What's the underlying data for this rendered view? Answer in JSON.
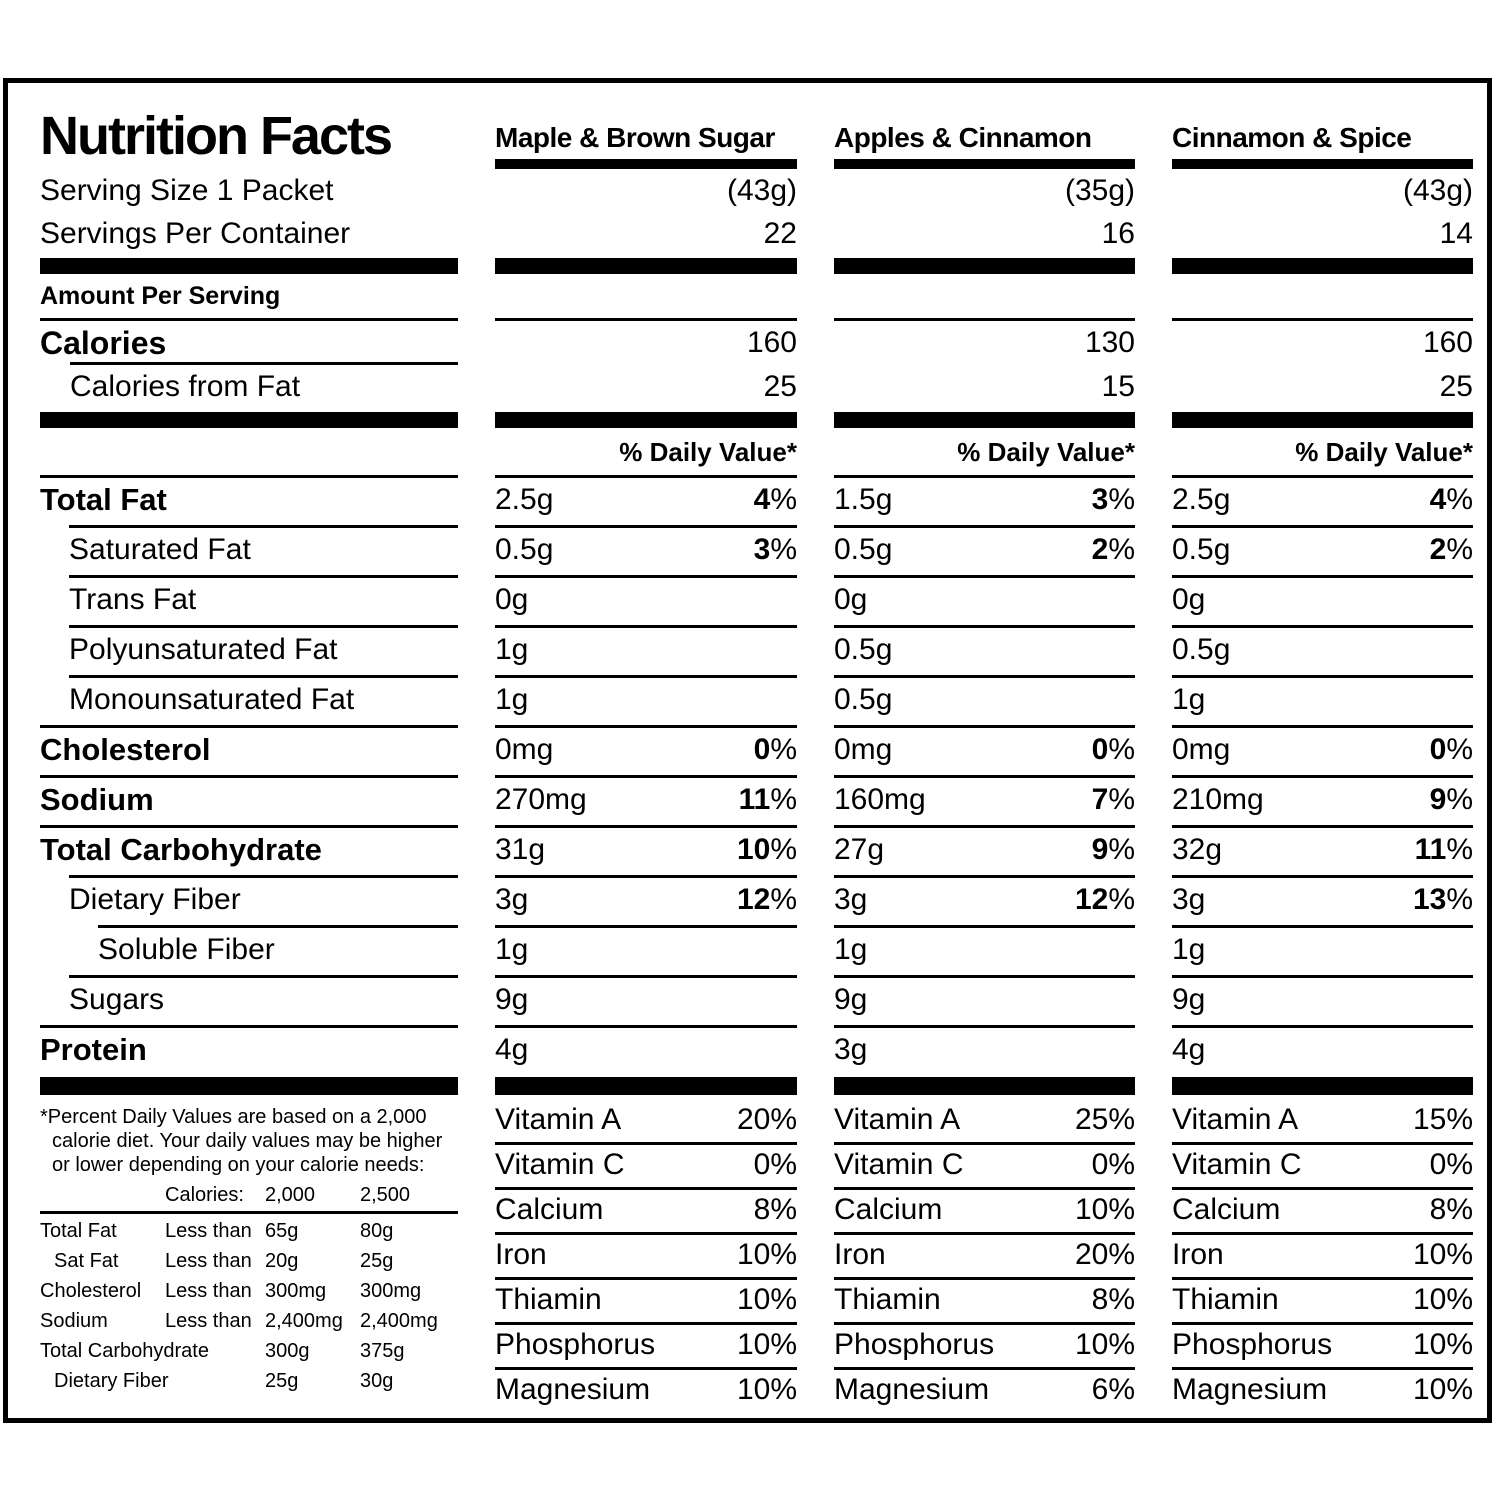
{
  "title": "Nutrition Facts",
  "serving": {
    "size_label": "Serving Size 1 Packet",
    "per_container_label": "Servings Per Container"
  },
  "amount_per_serving_label": "Amount Per Serving",
  "calories_label": "Calories",
  "calories_from_fat_label": "Calories from Fat",
  "daily_value_header": "% Daily Value*",
  "columns": [
    {
      "name": "Maple & Brown Sugar",
      "serving_weight": "(43g)",
      "servings_per_container": "22",
      "calories": "160",
      "calories_from_fat": "25"
    },
    {
      "name": "Apples & Cinnamon",
      "serving_weight": "(35g)",
      "servings_per_container": "16",
      "calories": "130",
      "calories_from_fat": "15"
    },
    {
      "name": "Cinnamon & Spice",
      "serving_weight": "(43g)",
      "servings_per_container": "14",
      "calories": "160",
      "calories_from_fat": "25"
    }
  ],
  "nutrients": [
    {
      "label": "Total Fat",
      "bold": true,
      "indent": 0,
      "values": [
        {
          "amount": "2.5g",
          "dv": "4%"
        },
        {
          "amount": "1.5g",
          "dv": "3%"
        },
        {
          "amount": "2.5g",
          "dv": "4%"
        }
      ]
    },
    {
      "label": "Saturated Fat",
      "bold": false,
      "indent": 1,
      "values": [
        {
          "amount": "0.5g",
          "dv": "3%"
        },
        {
          "amount": "0.5g",
          "dv": "2%"
        },
        {
          "amount": "0.5g",
          "dv": "2%"
        }
      ]
    },
    {
      "label": "Trans Fat",
      "bold": false,
      "indent": 1,
      "values": [
        {
          "amount": "0g"
        },
        {
          "amount": "0g"
        },
        {
          "amount": "0g"
        }
      ]
    },
    {
      "label": "Polyunsaturated Fat",
      "bold": false,
      "indent": 1,
      "values": [
        {
          "amount": "1g"
        },
        {
          "amount": "0.5g"
        },
        {
          "amount": "0.5g"
        }
      ]
    },
    {
      "label": "Monounsaturated Fat",
      "bold": false,
      "indent": 1,
      "values": [
        {
          "amount": "1g"
        },
        {
          "amount": "0.5g"
        },
        {
          "amount": "1g"
        }
      ]
    },
    {
      "label": "Cholesterol",
      "bold": true,
      "indent": 0,
      "values": [
        {
          "amount": "0mg",
          "dv": "0%"
        },
        {
          "amount": "0mg",
          "dv": "0%"
        },
        {
          "amount": "0mg",
          "dv": "0%"
        }
      ]
    },
    {
      "label": "Sodium",
      "bold": true,
      "indent": 0,
      "values": [
        {
          "amount": "270mg",
          "dv": "11%"
        },
        {
          "amount": "160mg",
          "dv": "7%"
        },
        {
          "amount": "210mg",
          "dv": "9%"
        }
      ]
    },
    {
      "label": "Total Carbohydrate",
      "bold": true,
      "indent": 0,
      "values": [
        {
          "amount": "31g",
          "dv": "10%"
        },
        {
          "amount": "27g",
          "dv": "9%"
        },
        {
          "amount": "32g",
          "dv": "11%"
        }
      ]
    },
    {
      "label": "Dietary Fiber",
      "bold": false,
      "indent": 1,
      "values": [
        {
          "amount": "3g",
          "dv": "12%"
        },
        {
          "amount": "3g",
          "dv": "12%"
        },
        {
          "amount": "3g",
          "dv": "13%"
        }
      ]
    },
    {
      "label": "Soluble Fiber",
      "bold": false,
      "indent": 2,
      "values": [
        {
          "amount": "1g"
        },
        {
          "amount": "1g"
        },
        {
          "amount": "1g"
        }
      ]
    },
    {
      "label": "Sugars",
      "bold": false,
      "indent": 1,
      "values": [
        {
          "amount": "9g"
        },
        {
          "amount": "9g"
        },
        {
          "amount": "9g"
        }
      ]
    },
    {
      "label": "Protein",
      "bold": true,
      "indent": 0,
      "values": [
        {
          "amount": "4g"
        },
        {
          "amount": "3g"
        },
        {
          "amount": "4g"
        }
      ]
    }
  ],
  "vitamins": [
    {
      "label": "Vitamin A",
      "values": [
        "20%",
        "25%",
        "15%"
      ]
    },
    {
      "label": "Vitamin C",
      "values": [
        "0%",
        "0%",
        "0%"
      ]
    },
    {
      "label": "Calcium",
      "values": [
        "8%",
        "10%",
        "8%"
      ]
    },
    {
      "label": "Iron",
      "values": [
        "10%",
        "20%",
        "10%"
      ]
    },
    {
      "label": "Thiamin",
      "values": [
        "10%",
        "8%",
        "10%"
      ]
    },
    {
      "label": "Phosphorus",
      "values": [
        "10%",
        "10%",
        "10%"
      ]
    },
    {
      "label": "Magnesium",
      "values": [
        "10%",
        "6%",
        "10%"
      ]
    }
  ],
  "footnote": {
    "text": "*Percent Daily Values are based on a 2,000 calorie diet. Your daily values may be higher or lower depending on your calorie needs:",
    "calories_label": "Calories:",
    "col_2000": "2,000",
    "col_2500": "2,500",
    "rows": [
      {
        "label": "Total Fat",
        "qualifier": "Less than",
        "v2000": "65g",
        "v2500": "80g",
        "indent": 0
      },
      {
        "label": "Sat Fat",
        "qualifier": "Less than",
        "v2000": "20g",
        "v2500": "25g",
        "indent": 1
      },
      {
        "label": "Cholesterol",
        "qualifier": "Less than",
        "v2000": "300mg",
        "v2500": "300mg",
        "indent": 0
      },
      {
        "label": "Sodium",
        "qualifier": "Less than",
        "v2000": "2,400mg",
        "v2500": "2,400mg",
        "indent": 0
      },
      {
        "label": "Total Carbohydrate",
        "qualifier": "",
        "v2000": "300g",
        "v2500": "375g",
        "indent": 0
      },
      {
        "label": "Dietary Fiber",
        "qualifier": "",
        "v2000": "25g",
        "v2500": "30g",
        "indent": 1
      }
    ]
  },
  "colors": {
    "ink": "#000000",
    "background": "#ffffff"
  }
}
